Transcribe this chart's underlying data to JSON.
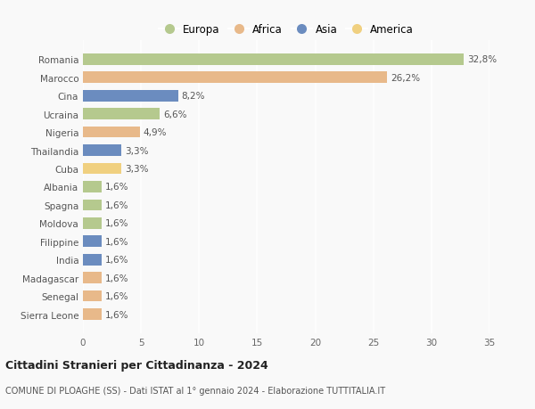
{
  "countries": [
    "Romania",
    "Marocco",
    "Cina",
    "Ucraina",
    "Nigeria",
    "Thailandia",
    "Cuba",
    "Albania",
    "Spagna",
    "Moldova",
    "Filippine",
    "India",
    "Madagascar",
    "Senegal",
    "Sierra Leone"
  ],
  "values": [
    32.8,
    26.2,
    8.2,
    6.6,
    4.9,
    3.3,
    3.3,
    1.6,
    1.6,
    1.6,
    1.6,
    1.6,
    1.6,
    1.6,
    1.6
  ],
  "labels": [
    "32,8%",
    "26,2%",
    "8,2%",
    "6,6%",
    "4,9%",
    "3,3%",
    "3,3%",
    "1,6%",
    "1,6%",
    "1,6%",
    "1,6%",
    "1,6%",
    "1,6%",
    "1,6%",
    "1,6%"
  ],
  "continents": [
    "Europa",
    "Africa",
    "Asia",
    "Europa",
    "Africa",
    "Asia",
    "America",
    "Europa",
    "Europa",
    "Europa",
    "Asia",
    "Asia",
    "Africa",
    "Africa",
    "Africa"
  ],
  "colors": {
    "Europa": "#b5c98e",
    "Africa": "#e8b98a",
    "Asia": "#6b8cbf",
    "America": "#f0d080"
  },
  "legend_order": [
    "Europa",
    "Africa",
    "Asia",
    "America"
  ],
  "xlim": [
    0,
    35
  ],
  "xticks": [
    0,
    5,
    10,
    15,
    20,
    25,
    30,
    35
  ],
  "title": "Cittadini Stranieri per Cittadinanza - 2024",
  "subtitle": "COMUNE DI PLOAGHE (SS) - Dati ISTAT al 1° gennaio 2024 - Elaborazione TUTTITALIA.IT",
  "bg_color": "#f9f9f9",
  "grid_color": "#ffffff",
  "bar_height": 0.62,
  "label_fontsize": 7.5,
  "tick_fontsize": 7.5,
  "title_fontsize": 9.0,
  "subtitle_fontsize": 7.0,
  "legend_fontsize": 8.5
}
